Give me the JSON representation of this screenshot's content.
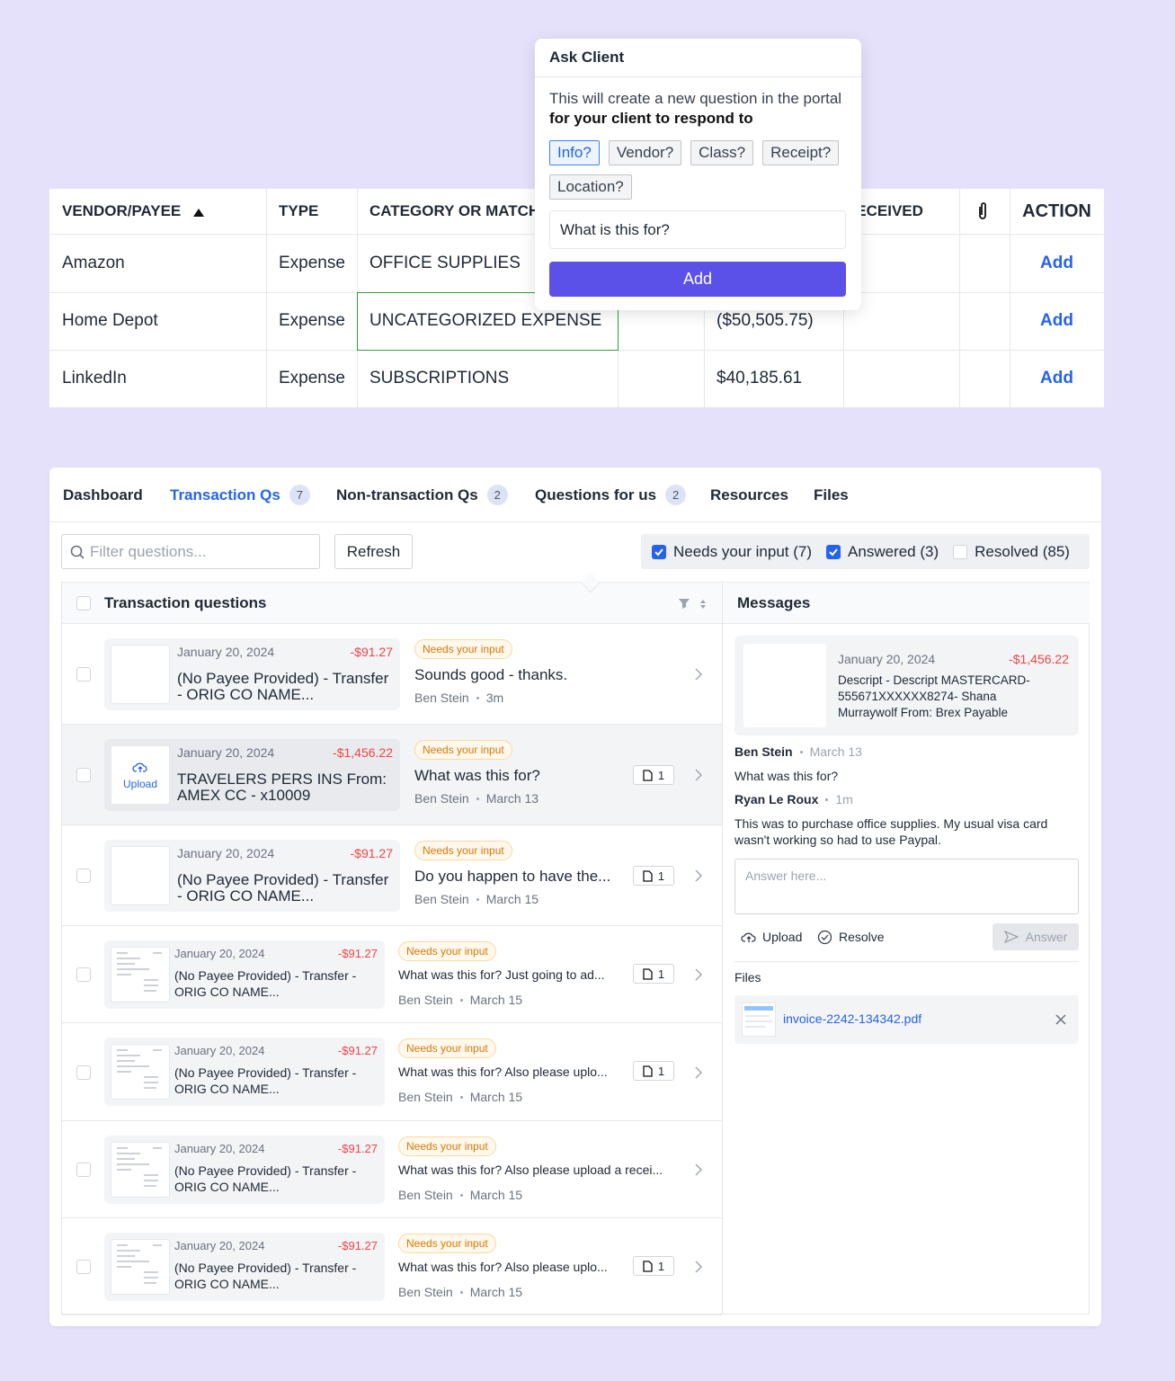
{
  "top_table": {
    "columns": [
      "VENDOR/PAYEE",
      "TYPE",
      "CATEGORY OR MATCH",
      null,
      null,
      "RECEIVED",
      null,
      "ACTION"
    ],
    "rows": [
      [
        "Amazon",
        "Expense",
        "OFFICE SUPPLIES",
        null,
        null,
        null,
        null,
        "Add"
      ],
      [
        "Home Depot",
        "Expense",
        "UNCATEGORIZED EXPENSE",
        null,
        "($50,505.75)",
        null,
        null,
        "Add"
      ],
      [
        "LinkedIn",
        "Expense",
        "SUBSCRIPTIONS",
        null,
        "$40,185.61",
        null,
        null,
        "Add"
      ]
    ]
  },
  "popup": {
    "title": "Ask Client",
    "text": "This will create a new question in the portal",
    "text_bold": "for your client to respond to",
    "chips": [
      "Info?",
      "Vendor?",
      "Class?",
      "Receipt?",
      "Location?"
    ],
    "input_value": "What is this for?",
    "button": "Add"
  },
  "tabs": [
    {
      "label": "Dashboard"
    },
    {
      "label": "Transaction Qs",
      "count": 7
    },
    {
      "label": "Non-transaction Qs",
      "count": 2
    },
    {
      "label": "Questions for us",
      "count": 2
    },
    {
      "label": "Resources"
    },
    {
      "label": "Files"
    }
  ],
  "toolbar": {
    "filter_placeholder": "Filter questions...",
    "refresh": "Refresh",
    "filters": [
      "Needs your input (7)",
      "Answered (3)",
      "Resolved (85)"
    ]
  },
  "list": {
    "title": "Transaction questions",
    "items": [
      {
        "date": "January 20, 2024",
        "amount": "-$91.27",
        "payee": "(No Payee Provided) - Transfer - ORIG CO NAME...",
        "status": "Needs your input",
        "message": "Sounds good - thanks.",
        "author": "Ben Stein",
        "time": "3m"
      },
      {
        "date": "January 20, 2024",
        "amount": "-$1,456.22",
        "payee": "TRAVELERS PERS INS From: AMEX CC - x10009",
        "thumbnail": "Upload",
        "status": "Needs your input",
        "message": "What was this for?",
        "author": "Ben Stein",
        "time": "March 13",
        "attachments": 1
      },
      {
        "date": "January 20, 2024",
        "amount": "-$91.27",
        "payee": "(No Payee Provided) - Transfer - ORIG CO NAME...",
        "status": "Needs your input",
        "message": "Do you happen to have the...",
        "author": "Ben Stein",
        "time": "March 15",
        "attachments": 1
      },
      {
        "date": "January 20, 2024",
        "amount": "-$91.27",
        "payee": "(No Payee Provided) - Transfer - ORIG CO NAME...",
        "status": "Needs your input",
        "message": "What was this for? Just going to ad...",
        "author": "Ben Stein",
        "time": "March 15",
        "attachments": 1
      },
      {
        "date": "January 20, 2024",
        "amount": "-$91.27",
        "payee": "(No Payee Provided) - Transfer - ORIG CO NAME...",
        "status": "Needs your input",
        "message": "What was this for? Also please uplo...",
        "author": "Ben Stein",
        "time": "March 15",
        "attachments": 1
      },
      {
        "date": "January 20, 2024",
        "amount": "-$91.27",
        "payee": "(No Payee Provided) - Transfer - ORIG CO NAME...",
        "status": "Needs your input",
        "message": "What was this for? Also please upload a recei...",
        "author": "Ben Stein",
        "time": "March 15"
      },
      {
        "date": "January 20, 2024",
        "amount": "-$91.27",
        "payee": "(No Payee Provided) - Transfer - ORIG CO NAME...",
        "status": "Needs your input",
        "message": "What was this for? Also please uplo...",
        "author": "Ben Stein",
        "time": "March 15",
        "attachments": 1
      }
    ]
  },
  "messages": {
    "title": "Messages",
    "card": {
      "date": "January 20, 2024",
      "amount": "-$1,456.22",
      "description": "Descript - Descript MASTERCARD-555671XXXXXX8274- Shana Murraywolf From: Brex Payable"
    },
    "thread": [
      {
        "author": "Ben Stein",
        "time": "March 13",
        "text": "What was this for?"
      },
      {
        "author": "Ryan Le Roux",
        "time": "1m",
        "text": "This was to purchase office supplies. My usual visa card wasn't working so had to use Paypal."
      }
    ],
    "answer_placeholder": "Answer here...",
    "upload": "Upload",
    "resolve": "Resolve",
    "answer": "Answer",
    "files_title": "Files",
    "files": [
      "invoice-2242-134342.pdf"
    ]
  }
}
